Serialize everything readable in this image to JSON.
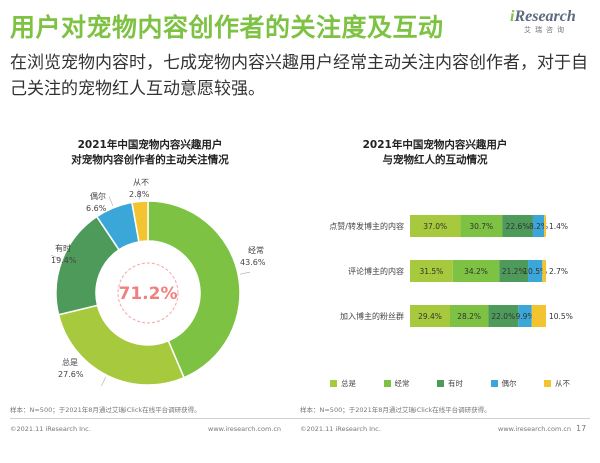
{
  "header": {
    "title": "用户对宠物内容创作者的关注度及互动",
    "logo_i": "i",
    "logo_text": "Research",
    "logo_sub": "艾瑞咨询",
    "subtitle": "在浏览宠物内容时，七成宠物内容兴趣用户经常主动关注内容创作者，对于自己关注的宠物红人互动意愿较强。"
  },
  "colors": {
    "always": "#a7c93d",
    "often": "#7dc242",
    "sometimes": "#4e9a5b",
    "occasionally": "#3aa7d8",
    "never": "#f4c430",
    "title_green": "#7dc242",
    "center_red": "#f08080"
  },
  "chart_data": [
    {
      "type": "pie",
      "variant": "donut",
      "title_line1": "2021年中国宠物内容兴趣用户",
      "title_line2": "对宠物内容创作者的主动关注情况",
      "center_label": "71.2%",
      "slices": [
        {
          "name": "经常",
          "value": 43.6,
          "value_label": "43.6%",
          "color_key": "often"
        },
        {
          "name": "总是",
          "value": 27.6,
          "value_label": "27.6%",
          "color_key": "always"
        },
        {
          "name": "有时",
          "value": 19.4,
          "value_label": "19.4%",
          "color_key": "sometimes"
        },
        {
          "name": "偶尔",
          "value": 6.6,
          "value_label": "6.6%",
          "color_key": "occasionally"
        },
        {
          "name": "从不",
          "value": 2.8,
          "value_label": "2.8%",
          "color_key": "never"
        }
      ]
    },
    {
      "type": "bar",
      "orientation": "horizontal",
      "stacked": true,
      "percent": true,
      "title_line1": "2021年中国宠物内容兴趣用户",
      "title_line2": "与宠物红人的互动情况",
      "categories": [
        "点赞/转发博主的内容",
        "评论博主的内容",
        "加入博主的粉丝群"
      ],
      "series": [
        {
          "name": "总是",
          "color_key": "always",
          "values": [
            37.0,
            31.5,
            29.4
          ],
          "labels": [
            "37.0%",
            "31.5%",
            "29.4%"
          ]
        },
        {
          "name": "经常",
          "color_key": "often",
          "values": [
            30.7,
            34.2,
            28.2
          ],
          "labels": [
            "30.7%",
            "34.2%",
            "28.2%"
          ]
        },
        {
          "name": "有时",
          "color_key": "sometimes",
          "values": [
            22.6,
            21.2,
            22.0
          ],
          "labels": [
            "22.6%",
            "21.2%",
            "22.0%"
          ]
        },
        {
          "name": "偶尔",
          "color_key": "occasionally",
          "values": [
            8.2,
            10.5,
            9.9
          ],
          "labels": [
            "8.2%",
            "10.5%",
            "9.9%"
          ]
        },
        {
          "name": "从不",
          "color_key": "never",
          "values": [
            1.4,
            2.7,
            10.5
          ],
          "labels": [
            "1.4%",
            "2.7%",
            "10.5%"
          ]
        }
      ],
      "legend_position": "bottom"
    }
  ],
  "footer": {
    "note": "样本：N=500；于2021年8月通过艾瑞iClick在线平台调研获得。",
    "copyright": "©2021.11 iResearch Inc.",
    "site": "www.iresearch.com.cn",
    "page_number": "17"
  }
}
